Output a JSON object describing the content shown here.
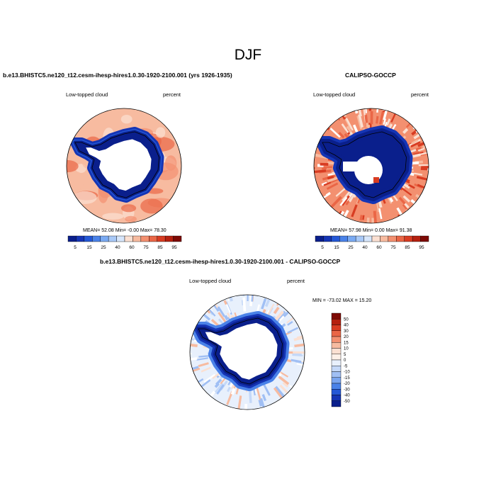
{
  "figure": {
    "title": "DJF"
  },
  "panels": [
    {
      "title": "b.e13.BHISTC5.ne120_t12.cesm-ihesp-hires1.0.30-1920-2100.001 (yrs 1926-1935)",
      "left_label": "Low-topped cloud",
      "right_label": "percent",
      "stats": "MEAN=  52.08  Min=  -0.00  Max=  78.30"
    },
    {
      "title": "CALIPSO-GOCCP",
      "left_label": "Low-topped cloud",
      "right_label": "percent",
      "stats": "MEAN=  57.98  Min=   0.00  Max=  91.38"
    },
    {
      "title": "b.e13.BHISTC5.ne120_t12.cesm-ihesp-hires1.0.30-1920-2100.001 - CALIPSO-GOCCP",
      "left_label": "Low-topped cloud",
      "right_label": "percent",
      "stats": "MIN = -73.02 MAX =  15.20"
    }
  ],
  "colorbars": {
    "field": {
      "labels": [
        "5",
        "15",
        "25",
        "40",
        "60",
        "75",
        "85",
        "95"
      ],
      "colors": [
        "#0a1f8c",
        "#1535b5",
        "#2458d6",
        "#4a82e8",
        "#7aaaf2",
        "#a9c9f7",
        "#d7e6fb",
        "#fbe0d2",
        "#f7bba0",
        "#f39070",
        "#ea6646",
        "#d83c22",
        "#b5200f",
        "#7e0a05"
      ]
    },
    "diff": {
      "labels": [
        "50",
        "40",
        "30",
        "20",
        "15",
        "10",
        "5",
        "0",
        "-5",
        "-10",
        "-15",
        "-20",
        "-30",
        "-40",
        "-50"
      ],
      "colors": [
        "#7e0a05",
        "#b5200f",
        "#d83c22",
        "#ea6646",
        "#f39070",
        "#f7bba0",
        "#fbe0d2",
        "#fdf0e8",
        "#e8f0fc",
        "#c4d8f8",
        "#a0bff4",
        "#7aa5ef",
        "#4a82e8",
        "#2458d6",
        "#1535b5",
        "#0a1f8c"
      ]
    }
  },
  "chart_data": [
    {
      "type": "heatmap",
      "title": "b.e13.BHISTC5.ne120_t12.cesm-ihesp-hires1.0.30-1920-2100.001 (yrs 1926-1935)",
      "variable": "Low-topped cloud",
      "units": "percent",
      "projection": "south polar stereographic",
      "mean": 52.08,
      "min": -0.0,
      "max": 78.3,
      "colorbar_levels": [
        5,
        15,
        25,
        40,
        60,
        75,
        85,
        95
      ]
    },
    {
      "type": "heatmap",
      "title": "CALIPSO-GOCCP",
      "variable": "Low-topped cloud",
      "units": "percent",
      "projection": "south polar stereographic",
      "mean": 57.98,
      "min": 0.0,
      "max": 91.38,
      "colorbar_levels": [
        5,
        15,
        25,
        40,
        60,
        75,
        85,
        95
      ]
    },
    {
      "type": "heatmap",
      "title": "b.e13.BHISTC5.ne120_t12.cesm-ihesp-hires1.0.30-1920-2100.001 - CALIPSO-GOCCP",
      "variable": "Low-topped cloud",
      "units": "percent",
      "projection": "south polar stereographic",
      "min": -73.02,
      "max": 15.2,
      "colorbar_levels": [
        50,
        40,
        30,
        20,
        15,
        10,
        5,
        0,
        -5,
        -10,
        -15,
        -20,
        -30,
        -40,
        -50
      ]
    }
  ]
}
